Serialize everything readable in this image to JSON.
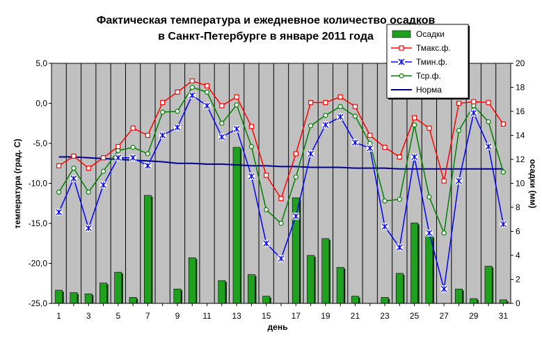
{
  "chart_data": {
    "type": "bar+line",
    "title_line1": "Фактическая температура и ежедневное количество осадков",
    "title_line2": "в Санкт-Петербурге в январе 2011 года",
    "xlabel": "день",
    "ylabel_left": "температура (град. С)",
    "ylabel_right": "осадки (мм)",
    "ylim_left": [
      -25,
      5
    ],
    "yticks_left": [
      5,
      0,
      -5,
      -10,
      -15,
      -20,
      -25
    ],
    "ytick_labels_left": [
      "5,0",
      "0,0",
      "-5,0",
      "-10,0",
      "-15,0",
      "-20,0",
      "-25,0"
    ],
    "ylim_right": [
      0,
      20
    ],
    "yticks_right": [
      20,
      18,
      16,
      14,
      12,
      10,
      8,
      6,
      4,
      2,
      0
    ],
    "ytick_labels_right": [
      "20",
      "18",
      "16",
      "14",
      "12",
      "10",
      "8",
      "6",
      "4",
      "2",
      "0"
    ],
    "x": [
      1,
      2,
      3,
      4,
      5,
      6,
      7,
      8,
      9,
      10,
      11,
      12,
      13,
      14,
      15,
      16,
      17,
      18,
      19,
      20,
      21,
      22,
      23,
      24,
      25,
      26,
      27,
      28,
      29,
      30,
      31
    ],
    "xtick_labels": [
      "1",
      "3",
      "5",
      "7",
      "9",
      "11",
      "13",
      "15",
      "17",
      "19",
      "21",
      "23",
      "25",
      "27",
      "29",
      "31"
    ],
    "grid": "vertical",
    "legend_position": "top-right",
    "colors": {
      "plot_bg": "#c0c0c0",
      "grid": "#000000",
      "bar_fill": "#1fa01f",
      "bar_shadow": "#003300",
      "tmax": "#ff0000",
      "tmin": "#0000ff",
      "tavg": "#008000",
      "norm": "#00008b"
    },
    "series": [
      {
        "name": "Осадки",
        "type": "bar",
        "axis": "right",
        "values": [
          1.1,
          0.9,
          0.8,
          1.7,
          2.6,
          0.5,
          9.0,
          0,
          1.2,
          3.8,
          0,
          1.9,
          13.0,
          2.4,
          0.6,
          0,
          8.8,
          4.0,
          5.4,
          3.0,
          0.6,
          0,
          0.5,
          2.5,
          6.7,
          5.6,
          0,
          1.2,
          0.4,
          3.1,
          0.3
        ]
      },
      {
        "name": "Тмакс.ф.",
        "type": "line",
        "axis": "left",
        "values": [
          -7.8,
          -6.6,
          -8.1,
          -6.8,
          -5.4,
          -3.1,
          -4.0,
          0.1,
          1.4,
          2.8,
          2.2,
          -0.3,
          0.8,
          -2.9,
          -9.0,
          -11.9,
          -6.3,
          0.1,
          0.1,
          0.8,
          -0.4,
          -4.0,
          -5.5,
          -6.7,
          -1.8,
          -3.1,
          -9.7,
          0.0,
          0.2,
          0.1,
          -2.6
        ]
      },
      {
        "name": "Тмин.ф.",
        "type": "line",
        "axis": "left",
        "values": [
          -13.6,
          -9.4,
          -15.6,
          -10.2,
          -6.8,
          -6.8,
          -7.8,
          -4.0,
          -3.0,
          1.0,
          -0.3,
          -4.2,
          -3.2,
          -9.1,
          -17.5,
          -19.4,
          -14.1,
          -6.3,
          -2.7,
          -1.7,
          -4.9,
          -5.6,
          -15.4,
          -18.0,
          -6.7,
          -16.2,
          -23.2,
          -9.7,
          -1.2,
          -5.4,
          -15.1
        ]
      },
      {
        "name": "Тср.ф.",
        "type": "line",
        "axis": "left",
        "values": [
          -11.1,
          -8.1,
          -11.1,
          -8.5,
          -5.9,
          -5.5,
          -6.3,
          -1.1,
          -1.0,
          2.0,
          1.4,
          -2.5,
          -0.2,
          -5.4,
          -13.3,
          -15.0,
          -9.2,
          -2.8,
          -1.5,
          -0.4,
          -1.6,
          -5.0,
          -12.2,
          -12.0,
          -2.7,
          -11.7,
          -16.2,
          -3.4,
          -0.3,
          -2.3,
          -8.6
        ]
      },
      {
        "name": "Норма",
        "type": "line",
        "axis": "left",
        "values": [
          -6.7,
          -6.7,
          -6.8,
          -6.9,
          -7.0,
          -7.1,
          -7.2,
          -7.3,
          -7.5,
          -7.5,
          -7.6,
          -7.6,
          -7.7,
          -7.8,
          -7.8,
          -7.9,
          -7.9,
          -8.0,
          -8.0,
          -8.0,
          -8.1,
          -8.1,
          -8.1,
          -8.2,
          -8.2,
          -8.2,
          -8.2,
          -8.2,
          -8.2,
          -8.2,
          -8.2
        ]
      }
    ]
  }
}
